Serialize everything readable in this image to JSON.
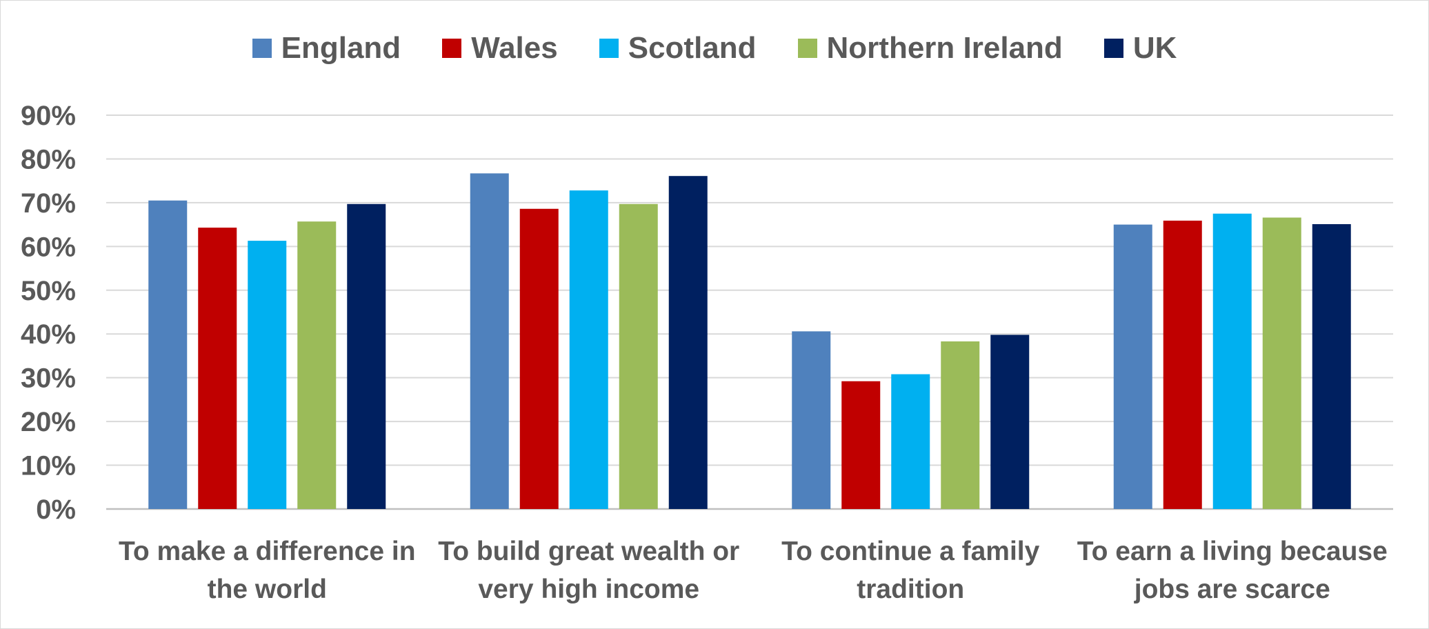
{
  "chart_data": {
    "type": "bar",
    "categories": [
      [
        "To make a difference in",
        "the world"
      ],
      [
        "To build great wealth or",
        "very high income"
      ],
      [
        "To continue a family",
        "tradition"
      ],
      [
        "To earn a living because",
        "jobs are scarce"
      ]
    ],
    "series": [
      {
        "name": "England",
        "color": "#4f81bd",
        "values": [
          70.5,
          76.7,
          40.6,
          65.0
        ]
      },
      {
        "name": "Wales",
        "color": "#c00000",
        "values": [
          64.3,
          68.6,
          29.2,
          65.9
        ]
      },
      {
        "name": "Scotland",
        "color": "#00b0f0",
        "values": [
          61.3,
          72.8,
          30.8,
          67.5
        ]
      },
      {
        "name": "Northern Ireland",
        "color": "#9bbb59",
        "values": [
          65.7,
          69.7,
          38.3,
          66.6
        ]
      },
      {
        "name": "UK",
        "color": "#002060",
        "values": [
          69.7,
          76.1,
          39.8,
          65.1
        ]
      }
    ],
    "yticks": [
      "0%",
      "10%",
      "20%",
      "30%",
      "40%",
      "50%",
      "60%",
      "70%",
      "80%",
      "90%"
    ],
    "ylim": [
      0,
      90
    ],
    "grid": true,
    "legend_position": "top"
  }
}
